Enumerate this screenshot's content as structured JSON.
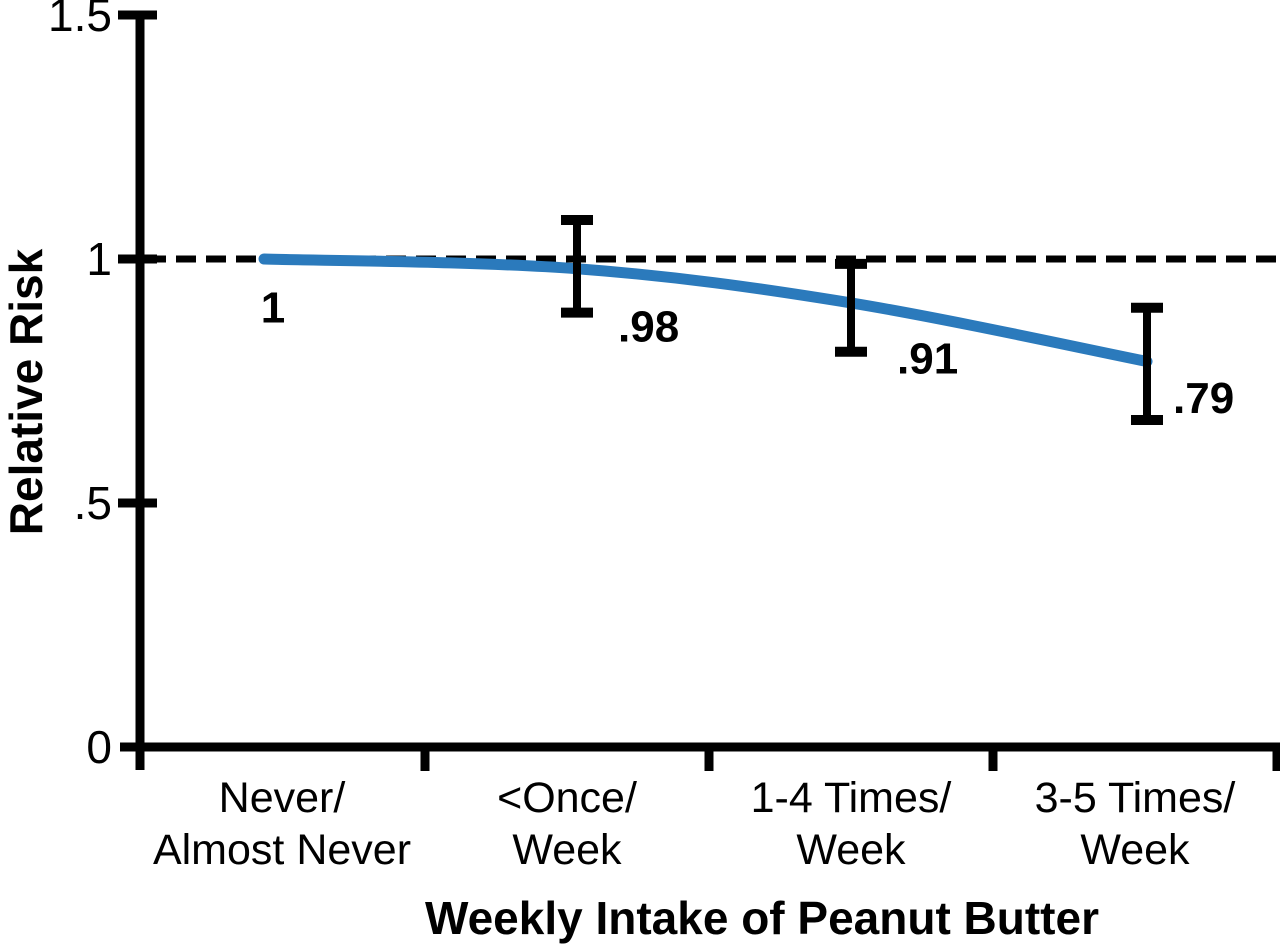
{
  "chart_data": {
    "type": "line",
    "title": "",
    "xlabel": "Weekly Intake of Peanut Butter",
    "ylabel": "Relative Risk",
    "categories": [
      "Never/Almost Never",
      "<Once/Week",
      "1-4 Times/Week",
      "3-5 Times/Week"
    ],
    "category_label_lines": [
      [
        "Never/",
        "Almost Never"
      ],
      [
        "<Once/",
        "Week"
      ],
      [
        "1-4 Times/",
        "Week"
      ],
      [
        "3-5 Times/",
        "Week"
      ]
    ],
    "series": [
      {
        "name": "Relative Risk",
        "values": [
          1.0,
          0.98,
          0.91,
          0.79
        ]
      }
    ],
    "point_labels": [
      "1",
      ".98",
      ".91",
      ".79"
    ],
    "error_bars": [
      null,
      [
        0.89,
        1.08
      ],
      [
        0.81,
        0.99
      ],
      [
        0.67,
        0.9
      ]
    ],
    "reference_line_y": 1.0,
    "ylim": [
      0,
      1.5
    ],
    "yticks": [
      {
        "value": 1.5,
        "label": "1.5"
      },
      {
        "value": 1.0,
        "label": "1"
      },
      {
        "value": 0.5,
        "label": ".5"
      },
      {
        "value": 0.0,
        "label": "0"
      }
    ],
    "grid": false,
    "legend": null,
    "line_color": "#2b7abc",
    "axis_color": "#000000",
    "reference_line_style": "dashed"
  }
}
